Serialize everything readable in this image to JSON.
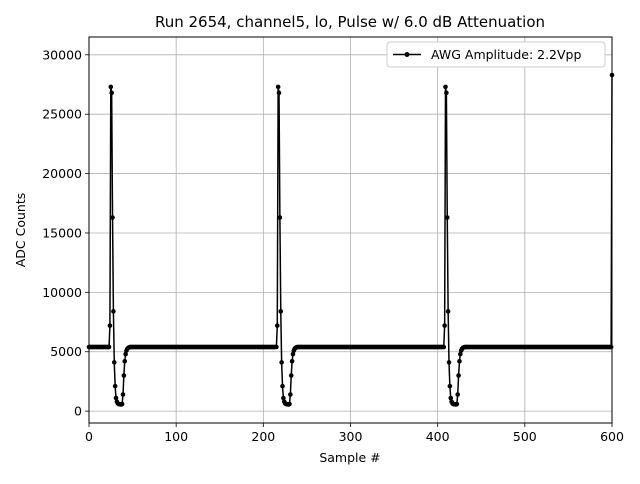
{
  "chart_data": {
    "type": "line",
    "title": "Run 2654, channel5, lo, Pulse w/ 6.0 dB Attenuation",
    "xlabel": "Sample #",
    "ylabel": "ADC Counts",
    "xlim": [
      0,
      600
    ],
    "ylim": [
      -1000,
      31500
    ],
    "xticks": [
      "0",
      "100",
      "200",
      "300",
      "400",
      "500",
      "600"
    ],
    "yticks": [
      "0",
      "5000",
      "10000",
      "15000",
      "20000",
      "25000",
      "30000"
    ],
    "grid": true,
    "legend_position": "top-right",
    "series": [
      {
        "name": "AWG Amplitude: 2.2Vpp",
        "color": "#000000",
        "marker": "circle",
        "period": 192,
        "baseline": 5400,
        "pulse_start_sample": 24,
        "pulse_shape": [
          7200,
          27300,
          26800,
          16300,
          8400,
          4100,
          2100,
          1100,
          800,
          650,
          600,
          580,
          570,
          560,
          600,
          1400,
          3000,
          4200,
          4800,
          5100,
          5250,
          5330,
          5370,
          5390
        ],
        "last_sample_value": 28300
      }
    ]
  }
}
